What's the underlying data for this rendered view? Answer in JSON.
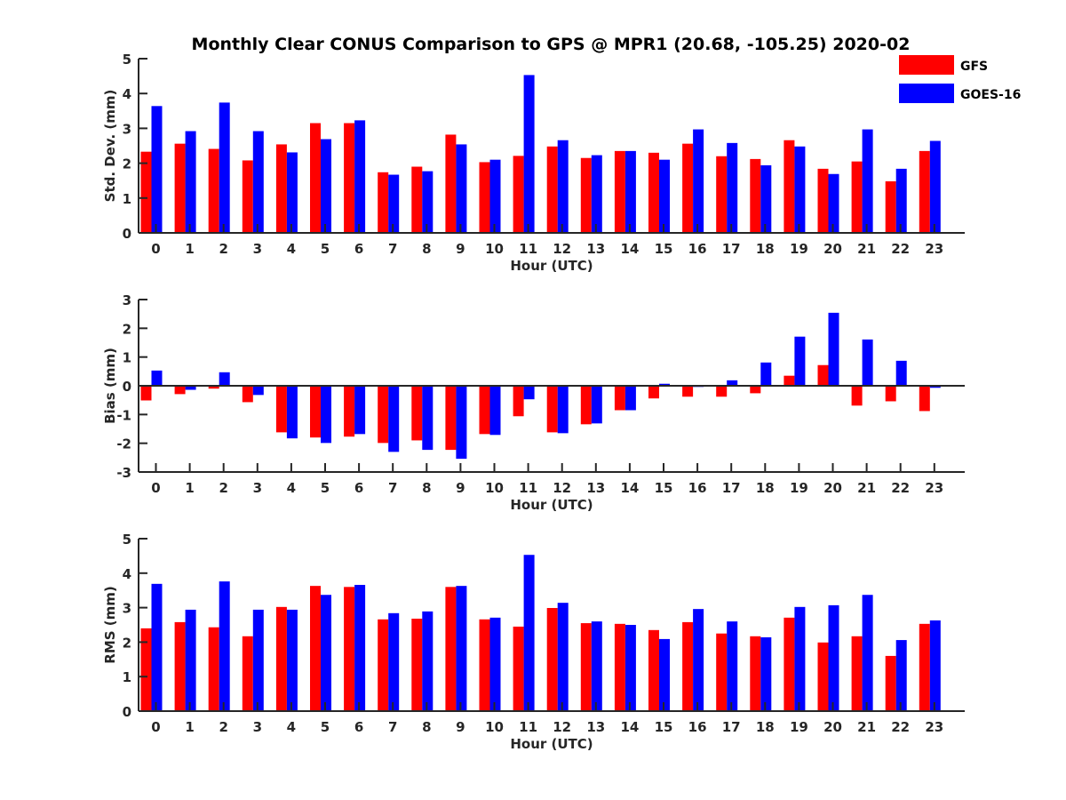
{
  "chart_data": {
    "title": "Monthly Clear CONUS Comparison to GPS @ MPR1 (20.68, -105.25) 2020-02",
    "legend": {
      "placement": "top-right",
      "entries": [
        {
          "name": "GFS",
          "color": "#ff0000"
        },
        {
          "name": "GOES-16",
          "color": "#0000ff"
        }
      ]
    },
    "panels": [
      {
        "type": "bar",
        "ylabel": "Std. Dev. (mm)",
        "xlabel": "Hour (UTC)",
        "ylim": [
          0,
          5
        ],
        "yticks": [
          "0",
          "1",
          "2",
          "3",
          "4",
          "5"
        ],
        "categories": [
          "0",
          "1",
          "2",
          "3",
          "4",
          "5",
          "6",
          "7",
          "8",
          "9",
          "10",
          "11",
          "12",
          "13",
          "14",
          "15",
          "16",
          "17",
          "18",
          "19",
          "20",
          "21",
          "22",
          "23"
        ],
        "series": [
          {
            "name": "GFS",
            "values": [
              2.33,
              2.56,
              2.41,
              2.08,
              2.54,
              3.15,
              3.15,
              1.74,
              1.9,
              2.82,
              2.03,
              2.21,
              2.48,
              2.15,
              2.35,
              2.3,
              2.56,
              2.2,
              2.12,
              2.66,
              1.84,
              2.05,
              1.48,
              2.35
            ]
          },
          {
            "name": "GOES-16",
            "values": [
              3.64,
              2.92,
              3.74,
              2.92,
              2.31,
              2.69,
              3.23,
              1.67,
              1.77,
              2.54,
              2.1,
              4.53,
              2.66,
              2.23,
              2.35,
              2.1,
              2.97,
              2.58,
              1.94,
              2.48,
              1.69,
              2.97,
              1.84,
              2.64
            ]
          }
        ]
      },
      {
        "type": "bar",
        "ylabel": "Bias (mm)",
        "xlabel": "Hour (UTC)",
        "ylim": [
          -3,
          3
        ],
        "yticks": [
          "-3",
          "-2",
          "-1",
          "0",
          "1",
          "2",
          "3"
        ],
        "categories": [
          "0",
          "1",
          "2",
          "3",
          "4",
          "5",
          "6",
          "7",
          "8",
          "9",
          "10",
          "11",
          "12",
          "13",
          "14",
          "15",
          "16",
          "17",
          "18",
          "19",
          "20",
          "21",
          "22",
          "23"
        ],
        "series": [
          {
            "name": "GFS",
            "values": [
              -0.51,
              -0.29,
              -0.1,
              -0.57,
              -1.62,
              -1.8,
              -1.77,
              -1.99,
              -1.9,
              -2.23,
              -1.68,
              -1.06,
              -1.62,
              -1.34,
              -0.85,
              -0.44,
              -0.38,
              -0.38,
              -0.26,
              0.35,
              0.72,
              -0.69,
              -0.54,
              -0.88
            ]
          },
          {
            "name": "GOES-16",
            "values": [
              0.53,
              -0.14,
              0.47,
              -0.32,
              -1.83,
              -1.99,
              -1.68,
              -2.3,
              -2.23,
              -2.54,
              -1.71,
              -0.47,
              -1.65,
              -1.31,
              -0.85,
              0.07,
              -0.04,
              0.19,
              0.81,
              1.71,
              2.54,
              1.61,
              0.87,
              -0.07
            ]
          }
        ]
      },
      {
        "type": "bar",
        "ylabel": "RMS (mm)",
        "xlabel": "Hour (UTC)",
        "ylim": [
          0,
          5
        ],
        "yticks": [
          "0",
          "1",
          "2",
          "3",
          "4",
          "5"
        ],
        "categories": [
          "0",
          "1",
          "2",
          "3",
          "4",
          "5",
          "6",
          "7",
          "8",
          "9",
          "10",
          "11",
          "12",
          "13",
          "14",
          "15",
          "16",
          "17",
          "18",
          "19",
          "20",
          "21",
          "22",
          "23"
        ],
        "series": [
          {
            "name": "GFS",
            "values": [
              2.4,
              2.58,
              2.43,
              2.17,
              3.02,
              3.63,
              3.6,
              2.66,
              2.68,
              3.6,
              2.66,
              2.45,
              2.99,
              2.55,
              2.53,
              2.35,
              2.58,
              2.25,
              2.17,
              2.71,
              1.99,
              2.17,
              1.6,
              2.53
            ]
          },
          {
            "name": "GOES-16",
            "values": [
              3.69,
              2.94,
              3.76,
              2.94,
              2.94,
              3.37,
              3.66,
              2.84,
              2.89,
              3.63,
              2.71,
              4.53,
              3.14,
              2.6,
              2.5,
              2.09,
              2.96,
              2.6,
              2.14,
              3.02,
              3.07,
              3.37,
              2.06,
              2.63
            ]
          }
        ]
      }
    ]
  }
}
